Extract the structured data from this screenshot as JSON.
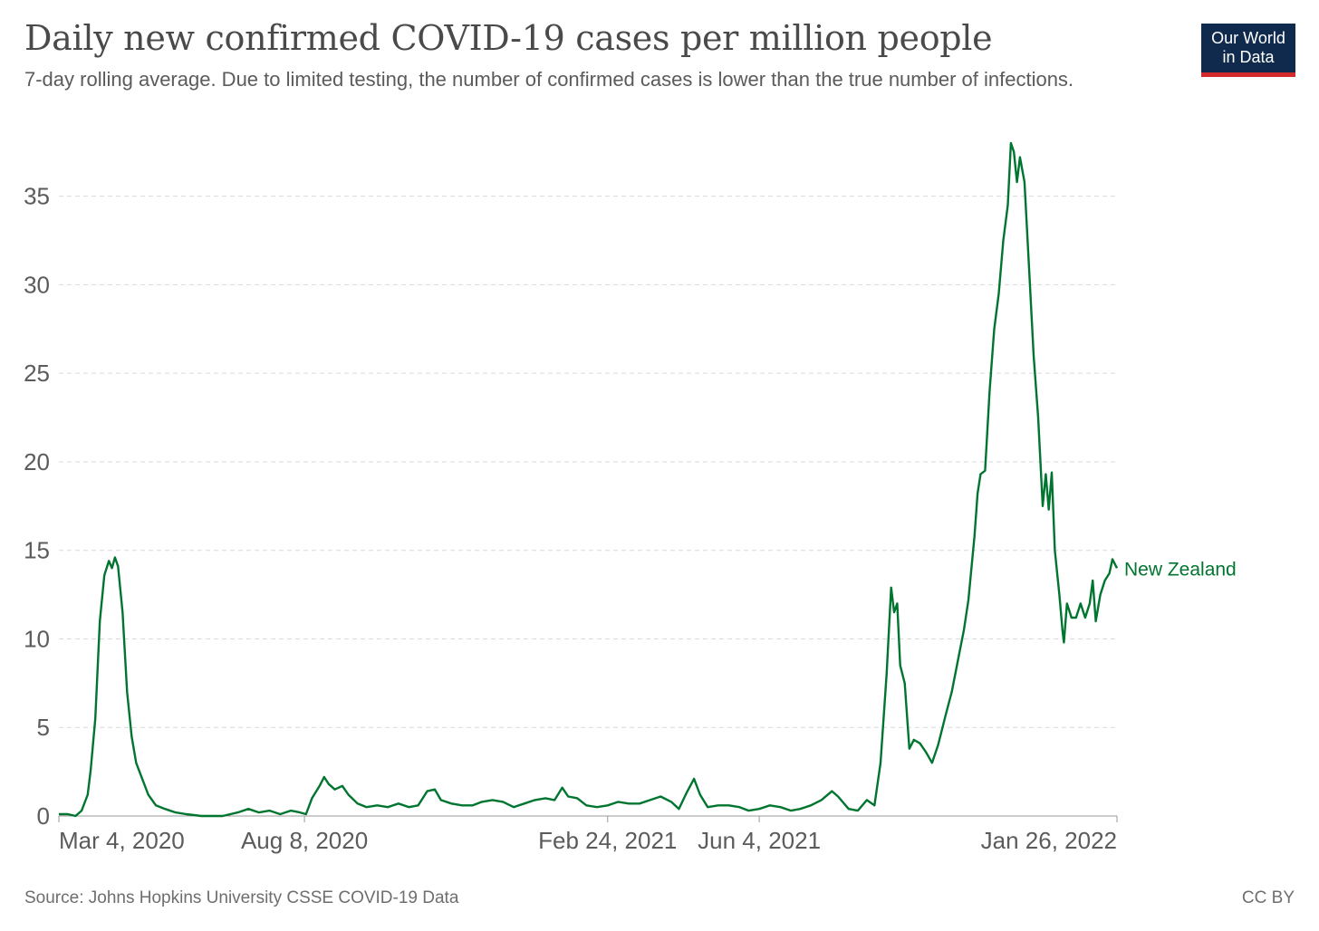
{
  "header": {
    "title": "Daily new confirmed COVID-19 cases per million people",
    "subtitle": "7-day rolling average. Due to limited testing, the number of confirmed cases is lower than the true number of infections.",
    "logo_line1": "Our World",
    "logo_line2": "in Data"
  },
  "footer": {
    "source": "Source: Johns Hopkins University CSSE COVID-19 Data",
    "license": "CC BY"
  },
  "colors": {
    "series": "#00752f",
    "logo_bg": "#0f2a4c",
    "logo_accent": "#d12b2b"
  },
  "chart_data": {
    "type": "line",
    "title": "Daily new confirmed COVID-19 cases per million people",
    "subtitle": "7-day rolling average. Due to limited testing, the number of confirmed cases is lower than the true number of infections.",
    "xlabel": "",
    "ylabel": "",
    "x_ticks": [
      "Mar 4, 2020",
      "Aug 8, 2020",
      "Feb 24, 2021",
      "Jun 4, 2021",
      "Jan 26, 2022"
    ],
    "y_ticks": [
      0,
      5,
      10,
      15,
      20,
      25,
      30,
      35
    ],
    "ylim": [
      0,
      38
    ],
    "xlim": [
      "2020-02-28",
      "2022-01-26"
    ],
    "grid": true,
    "series": [
      {
        "name": "New Zealand",
        "color": "#00752f",
        "points": [
          [
            "2020-02-28",
            0.1
          ],
          [
            "2020-03-05",
            0.1
          ],
          [
            "2020-03-10",
            0.0
          ],
          [
            "2020-03-14",
            0.3
          ],
          [
            "2020-03-18",
            1.2
          ],
          [
            "2020-03-20",
            2.6
          ],
          [
            "2020-03-23",
            5.5
          ],
          [
            "2020-03-26",
            11.0
          ],
          [
            "2020-03-29",
            13.6
          ],
          [
            "2020-04-01",
            14.4
          ],
          [
            "2020-04-03",
            14.0
          ],
          [
            "2020-04-05",
            14.6
          ],
          [
            "2020-04-07",
            14.1
          ],
          [
            "2020-04-10",
            11.5
          ],
          [
            "2020-04-13",
            7.0
          ],
          [
            "2020-04-16",
            4.5
          ],
          [
            "2020-04-19",
            3.0
          ],
          [
            "2020-04-23",
            2.1
          ],
          [
            "2020-04-27",
            1.2
          ],
          [
            "2020-05-02",
            0.6
          ],
          [
            "2020-05-08",
            0.4
          ],
          [
            "2020-05-15",
            0.2
          ],
          [
            "2020-05-22",
            0.1
          ],
          [
            "2020-06-01",
            0.0
          ],
          [
            "2020-06-15",
            0.0
          ],
          [
            "2020-06-25",
            0.2
          ],
          [
            "2020-07-02",
            0.4
          ],
          [
            "2020-07-09",
            0.2
          ],
          [
            "2020-07-16",
            0.3
          ],
          [
            "2020-07-23",
            0.1
          ],
          [
            "2020-07-30",
            0.3
          ],
          [
            "2020-08-05",
            0.2
          ],
          [
            "2020-08-09",
            0.1
          ],
          [
            "2020-08-13",
            1.0
          ],
          [
            "2020-08-18",
            1.7
          ],
          [
            "2020-08-21",
            2.2
          ],
          [
            "2020-08-24",
            1.8
          ],
          [
            "2020-08-28",
            1.5
          ],
          [
            "2020-09-02",
            1.7
          ],
          [
            "2020-09-06",
            1.2
          ],
          [
            "2020-09-12",
            0.7
          ],
          [
            "2020-09-18",
            0.5
          ],
          [
            "2020-09-25",
            0.6
          ],
          [
            "2020-10-02",
            0.5
          ],
          [
            "2020-10-09",
            0.7
          ],
          [
            "2020-10-16",
            0.5
          ],
          [
            "2020-10-22",
            0.6
          ],
          [
            "2020-10-28",
            1.4
          ],
          [
            "2020-11-02",
            1.5
          ],
          [
            "2020-11-06",
            0.9
          ],
          [
            "2020-11-13",
            0.7
          ],
          [
            "2020-11-20",
            0.6
          ],
          [
            "2020-11-27",
            0.6
          ],
          [
            "2020-12-03",
            0.8
          ],
          [
            "2020-12-10",
            0.9
          ],
          [
            "2020-12-17",
            0.8
          ],
          [
            "2020-12-24",
            0.5
          ],
          [
            "2020-12-31",
            0.7
          ],
          [
            "2021-01-07",
            0.9
          ],
          [
            "2021-01-14",
            1.0
          ],
          [
            "2021-01-20",
            0.9
          ],
          [
            "2021-01-25",
            1.6
          ],
          [
            "2021-01-29",
            1.1
          ],
          [
            "2021-02-04",
            1.0
          ],
          [
            "2021-02-10",
            0.6
          ],
          [
            "2021-02-17",
            0.5
          ],
          [
            "2021-02-24",
            0.6
          ],
          [
            "2021-03-03",
            0.8
          ],
          [
            "2021-03-10",
            0.7
          ],
          [
            "2021-03-17",
            0.7
          ],
          [
            "2021-03-24",
            0.9
          ],
          [
            "2021-03-31",
            1.1
          ],
          [
            "2021-04-07",
            0.8
          ],
          [
            "2021-04-12",
            0.4
          ],
          [
            "2021-04-17",
            1.3
          ],
          [
            "2021-04-22",
            2.1
          ],
          [
            "2021-04-26",
            1.2
          ],
          [
            "2021-05-01",
            0.5
          ],
          [
            "2021-05-08",
            0.6
          ],
          [
            "2021-05-15",
            0.6
          ],
          [
            "2021-05-22",
            0.5
          ],
          [
            "2021-05-28",
            0.3
          ],
          [
            "2021-06-04",
            0.4
          ],
          [
            "2021-06-11",
            0.6
          ],
          [
            "2021-06-18",
            0.5
          ],
          [
            "2021-06-25",
            0.3
          ],
          [
            "2021-07-01",
            0.4
          ],
          [
            "2021-07-08",
            0.6
          ],
          [
            "2021-07-15",
            0.9
          ],
          [
            "2021-07-22",
            1.4
          ],
          [
            "2021-07-26",
            1.1
          ],
          [
            "2021-08-02",
            0.4
          ],
          [
            "2021-08-08",
            0.3
          ],
          [
            "2021-08-14",
            0.9
          ],
          [
            "2021-08-19",
            0.6
          ],
          [
            "2021-08-23",
            3.0
          ],
          [
            "2021-08-27",
            8.0
          ],
          [
            "2021-08-30",
            12.9
          ],
          [
            "2021-09-01",
            11.5
          ],
          [
            "2021-09-03",
            12.0
          ],
          [
            "2021-09-05",
            8.5
          ],
          [
            "2021-09-08",
            7.5
          ],
          [
            "2021-09-11",
            3.8
          ],
          [
            "2021-09-14",
            4.3
          ],
          [
            "2021-09-18",
            4.1
          ],
          [
            "2021-09-22",
            3.6
          ],
          [
            "2021-09-26",
            3.0
          ],
          [
            "2021-09-30",
            4.0
          ],
          [
            "2021-10-05",
            5.7
          ],
          [
            "2021-10-09",
            7.0
          ],
          [
            "2021-10-14",
            9.2
          ],
          [
            "2021-10-17",
            10.5
          ],
          [
            "2021-10-20",
            12.2
          ],
          [
            "2021-10-24",
            15.8
          ],
          [
            "2021-10-26",
            18.2
          ],
          [
            "2021-10-28",
            19.3
          ],
          [
            "2021-10-31",
            19.5
          ],
          [
            "2021-11-03",
            24.0
          ],
          [
            "2021-11-06",
            27.5
          ],
          [
            "2021-11-09",
            29.5
          ],
          [
            "2021-11-12",
            32.5
          ],
          [
            "2021-11-15",
            34.5
          ],
          [
            "2021-11-17",
            38.0
          ],
          [
            "2021-11-19",
            37.5
          ],
          [
            "2021-11-21",
            35.8
          ],
          [
            "2021-11-23",
            37.2
          ],
          [
            "2021-11-26",
            35.8
          ],
          [
            "2021-11-29",
            31.0
          ],
          [
            "2021-12-02",
            26.0
          ],
          [
            "2021-12-05",
            22.5
          ],
          [
            "2021-12-08",
            17.5
          ],
          [
            "2021-12-10",
            19.3
          ],
          [
            "2021-12-12",
            17.3
          ],
          [
            "2021-12-14",
            19.4
          ],
          [
            "2021-12-16",
            15.0
          ],
          [
            "2021-12-19",
            12.5
          ],
          [
            "2021-12-21",
            10.5
          ],
          [
            "2021-12-22",
            9.8
          ],
          [
            "2021-12-24",
            12.0
          ],
          [
            "2021-12-27",
            11.2
          ],
          [
            "2021-12-30",
            11.2
          ],
          [
            "2022-01-02",
            12.0
          ],
          [
            "2022-01-05",
            11.2
          ],
          [
            "2022-01-08",
            12.0
          ],
          [
            "2022-01-10",
            13.3
          ],
          [
            "2022-01-12",
            11.0
          ],
          [
            "2022-01-15",
            12.5
          ],
          [
            "2022-01-18",
            13.3
          ],
          [
            "2022-01-21",
            13.7
          ],
          [
            "2022-01-23",
            14.5
          ],
          [
            "2022-01-26",
            14.0
          ]
        ]
      }
    ]
  }
}
